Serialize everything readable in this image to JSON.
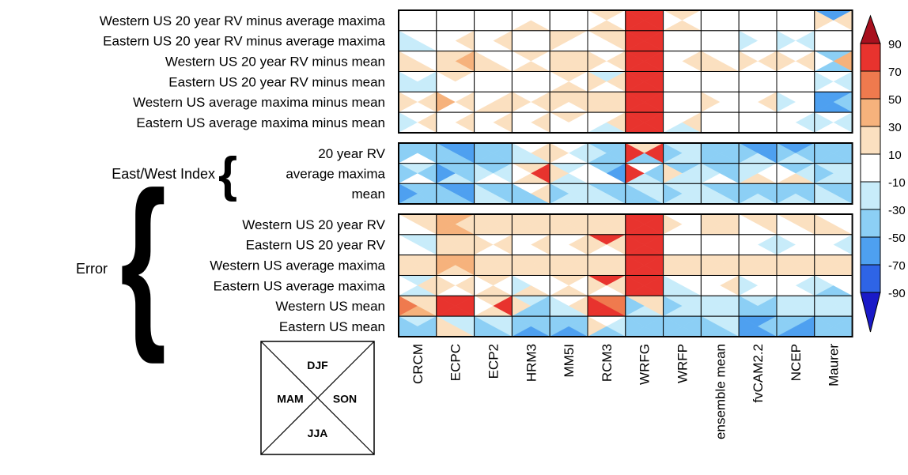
{
  "chart_data": {
    "type": "heatmap",
    "cell_layout": "four triangles per cell, one per season (legend key)",
    "season_key": {
      "top": "DJF",
      "left": "MAM",
      "right": "SON",
      "bottom": "JJA"
    },
    "columns": [
      "CRCM",
      "ECPC",
      "ECP2",
      "HRM3",
      "MM5I",
      "RCM3",
      "WRFG",
      "WRFP",
      "ensemble mean",
      "fvCAM2.2",
      "NCEP",
      "Maurer"
    ],
    "groups": [
      {
        "label": "",
        "rows": [
          "Western US 20 year RV minus average maxima",
          "Eastern US 20 year RV minus average maxima",
          "Western US 20 year RV minus mean",
          "Eastern US 20 year RV minus mean",
          "Western US average maxima minus mean",
          "Eastern US average maxima minus mean"
        ]
      },
      {
        "label": "East/West Index",
        "rows": [
          "20 year RV",
          "average maxima",
          "mean"
        ]
      },
      {
        "label": "Error",
        "rows": [
          "Western US 20 year RV",
          "Eastern US 20 year RV",
          "Western US average maxima",
          "Eastern US average maxima",
          "Western US mean",
          "Eastern US mean"
        ]
      }
    ],
    "colorbar": {
      "ticks": [
        "90",
        "70",
        "50",
        "30",
        "10",
        "-10",
        "-30",
        "-50",
        "-70",
        "-90"
      ],
      "colors": [
        "#1a1ac8",
        "#2e64e6",
        "#4ea0f0",
        "#8ccff5",
        "#c8ecfa",
        "#ffffff",
        "#fbe0c0",
        "#f6b27c",
        "#ef7a4e",
        "#e8332e",
        "#a8101e"
      ]
    },
    "values": [
      [
        [
          1,
          1,
          1,
          1
        ],
        [
          1,
          1,
          1,
          1
        ],
        [
          1,
          1,
          1,
          1
        ],
        [
          1,
          1,
          1,
          2
        ],
        [
          1,
          1,
          1,
          1
        ],
        [
          2,
          1,
          1,
          3
        ],
        [
          10,
          10,
          10,
          10
        ],
        [
          2,
          1,
          1,
          2
        ],
        [
          1,
          1,
          1,
          1
        ],
        [
          1,
          1,
          1,
          1
        ],
        [
          1,
          1,
          1,
          1
        ],
        [
          -5,
          2,
          3,
          1
        ]
      ],
      [
        [
          0,
          -1,
          0,
          -1
        ],
        [
          1,
          1,
          2,
          1
        ],
        [
          1,
          1,
          2,
          1
        ],
        [
          1,
          1,
          1,
          1
        ],
        [
          2,
          2,
          1,
          1
        ],
        [
          2,
          1,
          2,
          1
        ],
        [
          10,
          10,
          10,
          10
        ],
        [
          1,
          1,
          1,
          1
        ],
        [
          1,
          1,
          1,
          1
        ],
        [
          0,
          -1,
          0,
          0
        ],
        [
          0,
          -2,
          -1,
          0
        ],
        [
          0,
          0,
          0,
          0
        ]
      ],
      [
        [
          1,
          2,
          1,
          2
        ],
        [
          2,
          2,
          4,
          2
        ],
        [
          1,
          2,
          1,
          2
        ],
        [
          2,
          1,
          1,
          2
        ],
        [
          2,
          2,
          2,
          2
        ],
        [
          1,
          2,
          2,
          1
        ],
        [
          9,
          10,
          10,
          10
        ],
        [
          1,
          1,
          2,
          1
        ],
        [
          1,
          2,
          1,
          2
        ],
        [
          1,
          2,
          2,
          1
        ],
        [
          1,
          2,
          2,
          1
        ],
        [
          -4,
          1,
          4,
          -3
        ]
      ],
      [
        [
          0,
          -1,
          -1,
          -1
        ],
        [
          2,
          1,
          1,
          1
        ],
        [
          1,
          1,
          1,
          1
        ],
        [
          0,
          1,
          1,
          1
        ],
        [
          2,
          1,
          1,
          2
        ],
        [
          -1,
          2,
          2,
          1
        ],
        [
          10,
          10,
          10,
          10
        ],
        [
          1,
          1,
          1,
          1
        ],
        [
          1,
          1,
          1,
          1
        ],
        [
          1,
          1,
          1,
          1
        ],
        [
          0,
          0,
          0,
          0
        ],
        [
          0,
          -2,
          -1,
          0
        ]
      ],
      [
        [
          1,
          2,
          2,
          1
        ],
        [
          1,
          5,
          2,
          1
        ],
        [
          1,
          1,
          2,
          2
        ],
        [
          1,
          2,
          2,
          1
        ],
        [
          2,
          2,
          2,
          1
        ],
        [
          2,
          3,
          2,
          2
        ],
        [
          10,
          9,
          10,
          10
        ],
        [
          1,
          1,
          1,
          1
        ],
        [
          1,
          2,
          1,
          1
        ],
        [
          1,
          0,
          2,
          1
        ],
        [
          0,
          -1,
          0,
          0
        ],
        [
          -5,
          -5,
          -4,
          -5
        ]
      ],
      [
        [
          1,
          -1,
          2,
          0
        ],
        [
          1,
          1,
          2,
          1
        ],
        [
          1,
          1,
          2,
          1
        ],
        [
          1,
          1,
          2,
          1
        ],
        [
          2,
          1,
          1,
          1
        ],
        [
          1,
          1,
          2,
          -1
        ],
        [
          10,
          10,
          10,
          10
        ],
        [
          1,
          1,
          2,
          -1
        ],
        [
          1,
          1,
          1,
          1
        ],
        [
          1,
          1,
          1,
          0
        ],
        [
          1,
          1,
          -2,
          1
        ],
        [
          0,
          -2,
          -1,
          0
        ]
      ],
      [
        [
          -4,
          -4,
          -4,
          0
        ],
        [
          -5,
          -4,
          -5,
          -4
        ],
        [
          -4,
          -3,
          -4,
          -3
        ],
        [
          0,
          -1,
          2,
          -1
        ],
        [
          0,
          2,
          -2,
          1
        ],
        [
          -4,
          -2,
          -4,
          -3
        ],
        [
          2,
          9,
          8,
          -3
        ],
        [
          -2,
          -3,
          -2,
          -2
        ],
        [
          -4,
          -3,
          -4,
          -3
        ],
        [
          -5,
          -4,
          -5,
          -2
        ],
        [
          -5,
          -4,
          -3,
          -2
        ],
        [
          -4,
          -3,
          -4,
          -3
        ]
      ],
      [
        [
          -2,
          -4,
          -3,
          0
        ],
        [
          -4,
          -5,
          -4,
          -2
        ],
        [
          -3,
          -1,
          -2,
          0
        ],
        [
          3,
          1,
          9,
          2
        ],
        [
          -1,
          2,
          0,
          -2
        ],
        [
          -3,
          1,
          -5,
          0
        ],
        [
          1,
          9,
          -3,
          -2
        ],
        [
          -3,
          3,
          -2,
          -1
        ],
        [
          -3,
          -2,
          -3,
          1
        ],
        [
          -2,
          -1,
          0,
          3
        ],
        [
          -3,
          1,
          -2,
          2
        ],
        [
          -2,
          -3,
          -1,
          -1
        ]
      ],
      [
        [
          -4,
          -5,
          -4,
          -3
        ],
        [
          -5,
          -4,
          -5,
          -3
        ],
        [
          -3,
          -2,
          -3,
          -1
        ],
        [
          0,
          -3,
          3,
          -3
        ],
        [
          -2,
          -3,
          -1,
          -2
        ],
        [
          -3,
          -2,
          -4,
          -2
        ],
        [
          -2,
          -3,
          -2,
          -4
        ],
        [
          -2,
          -3,
          -2,
          -2
        ],
        [
          -3,
          -2,
          -3,
          -2
        ],
        [
          -4,
          -3,
          -4,
          -2
        ],
        [
          -4,
          -3,
          -4,
          -1
        ],
        [
          -3,
          -2,
          -3,
          -2
        ]
      ],
      [
        [
          2,
          1,
          2,
          1
        ],
        [
          4,
          4,
          3,
          4
        ],
        [
          3,
          2,
          3,
          2
        ],
        [
          2,
          2,
          2,
          2
        ],
        [
          2,
          3,
          2,
          3
        ],
        [
          2,
          2,
          3,
          2
        ],
        [
          10,
          10,
          10,
          10
        ],
        [
          1,
          2,
          1,
          1
        ],
        [
          2,
          2,
          2,
          2
        ],
        [
          2,
          1,
          2,
          1
        ],
        [
          2,
          1,
          2,
          1
        ],
        [
          1,
          2,
          1,
          2
        ]
      ],
      [
        [
          -2,
          0,
          -1,
          0
        ],
        [
          2,
          2,
          2,
          2
        ],
        [
          1,
          2,
          2,
          1
        ],
        [
          1,
          1,
          2,
          1
        ],
        [
          1,
          1,
          2,
          1
        ],
        [
          8,
          2,
          2,
          1
        ],
        [
          10,
          10,
          10,
          10
        ],
        [
          1,
          1,
          1,
          1
        ],
        [
          1,
          1,
          1,
          1
        ],
        [
          1,
          1,
          -1,
          1
        ],
        [
          1,
          -2,
          1,
          1
        ],
        [
          0,
          1,
          -2,
          1
        ]
      ],
      [
        [
          2,
          2,
          3,
          2
        ],
        [
          4,
          4,
          5,
          3
        ],
        [
          3,
          2,
          3,
          2
        ],
        [
          2,
          3,
          2,
          3
        ],
        [
          2,
          2,
          3,
          2
        ],
        [
          3,
          2,
          3,
          3
        ],
        [
          10,
          10,
          10,
          10
        ],
        [
          2,
          2,
          2,
          2
        ],
        [
          3,
          2,
          3,
          2
        ],
        [
          2,
          3,
          2,
          2
        ],
        [
          2,
          3,
          2,
          2
        ],
        [
          2,
          3,
          2,
          2
        ]
      ],
      [
        [
          -1,
          1,
          2,
          -2
        ],
        [
          1,
          2,
          2,
          1
        ],
        [
          2,
          1,
          1,
          2
        ],
        [
          1,
          -2,
          1,
          2
        ],
        [
          2,
          1,
          1,
          2
        ],
        [
          8,
          2,
          2,
          1
        ],
        [
          10,
          10,
          10,
          10
        ],
        [
          1,
          -2,
          1,
          -1
        ],
        [
          1,
          1,
          2,
          1
        ],
        [
          1,
          -1,
          1,
          1
        ],
        [
          1,
          1,
          -1,
          1
        ],
        [
          1,
          -1,
          1,
          -3
        ]
      ],
      [
        [
          2,
          7,
          2,
          4
        ],
        [
          9,
          10,
          10,
          9
        ],
        [
          2,
          1,
          10,
          2
        ],
        [
          -2,
          2,
          -4,
          -3
        ],
        [
          1,
          -2,
          2,
          -2
        ],
        [
          7,
          9,
          7,
          8
        ],
        [
          2,
          -3,
          3,
          -2
        ],
        [
          -2,
          -3,
          -2,
          -2
        ],
        [
          -1,
          -2,
          -1,
          -2
        ],
        [
          -1,
          -3,
          -4,
          -3
        ],
        [
          -1,
          -2,
          -1,
          -2
        ],
        [
          -1,
          -2,
          -1,
          -2
        ]
      ],
      [
        [
          -2,
          -3,
          -4,
          -3
        ],
        [
          -2,
          2,
          -1,
          2
        ],
        [
          -2,
          -3,
          -2,
          -3
        ],
        [
          -3,
          -4,
          -3,
          -5
        ],
        [
          -3,
          -4,
          -3,
          -5
        ],
        [
          1,
          2,
          -2,
          -3
        ],
        [
          -4,
          -4,
          -4,
          -4
        ],
        [
          -3,
          -4,
          -3,
          -4
        ],
        [
          -2,
          -3,
          -2,
          -3
        ],
        [
          -5,
          -5,
          -4,
          -5
        ],
        [
          -3,
          -4,
          -5,
          -5
        ],
        [
          -3,
          -4,
          -3,
          -3
        ]
      ]
    ]
  }
}
